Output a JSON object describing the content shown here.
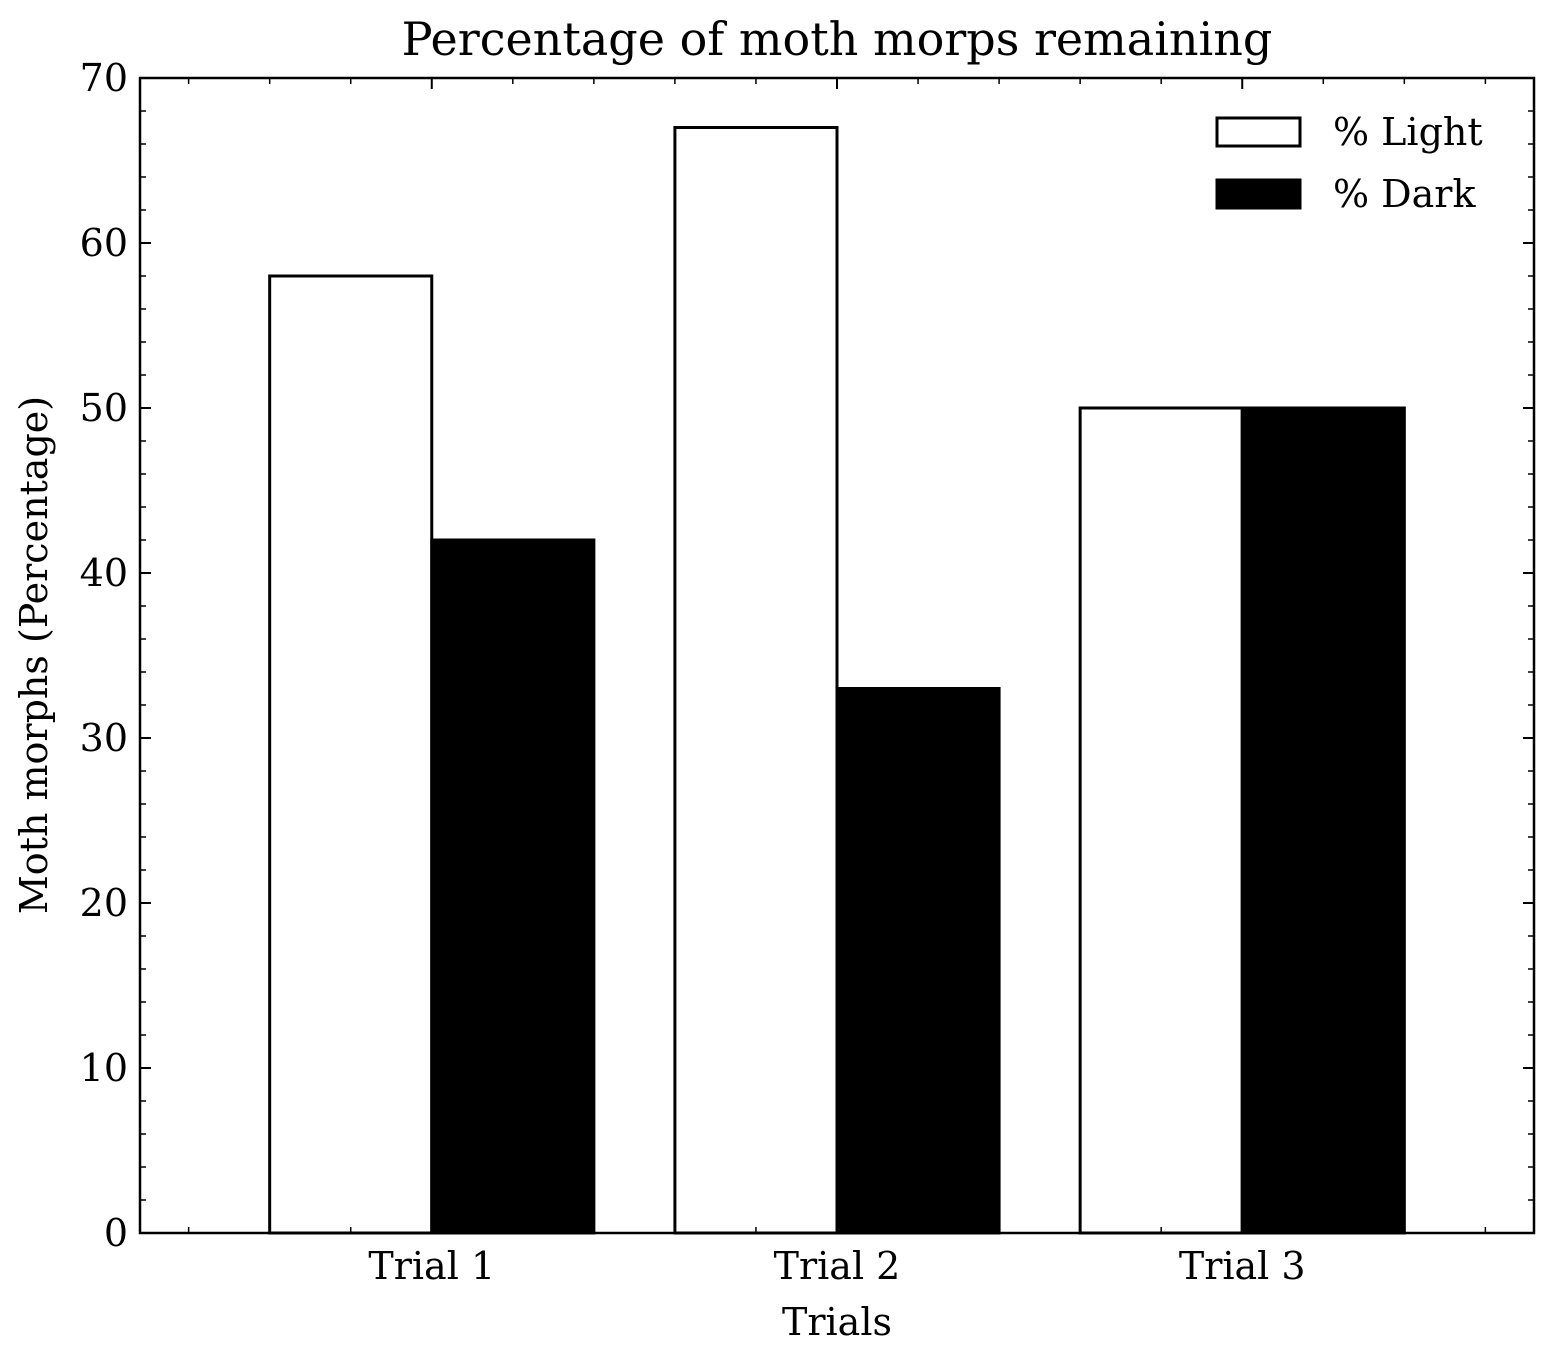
{
  "chart_data": {
    "type": "bar",
    "title": "Percentage of moth morps remaining",
    "xlabel": "Trials",
    "ylabel": "Moth morphs (Percentage)",
    "categories": [
      "Trial 1",
      "Trial 2",
      "Trial 3"
    ],
    "series": [
      {
        "name": "% Light",
        "values": [
          58,
          67,
          50
        ],
        "fill": "#ffffff",
        "stroke": "#000000"
      },
      {
        "name": "% Dark",
        "values": [
          42,
          33,
          50
        ],
        "fill": "#000000",
        "stroke": "#000000"
      }
    ],
    "ylim": [
      0,
      70
    ],
    "yticks": [
      0,
      10,
      20,
      30,
      40,
      50,
      60,
      70
    ],
    "grid": false,
    "legend": "top-right"
  }
}
